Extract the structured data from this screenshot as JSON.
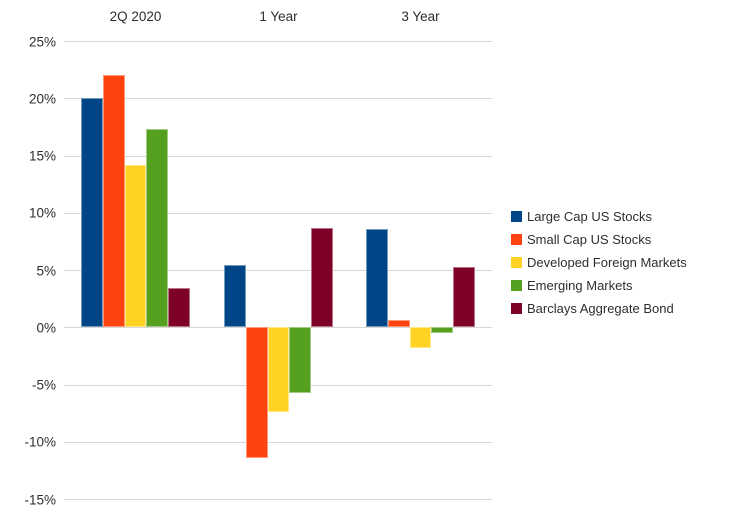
{
  "chart_data": {
    "type": "bar",
    "title": "",
    "categories": [
      "2Q 2020",
      "1 Year",
      "3 Year"
    ],
    "series": [
      {
        "name": "Large Cap US Stocks",
        "color": "#004687",
        "values": [
          20.0,
          5.4,
          8.6
        ]
      },
      {
        "name": "Small Cap US Stocks",
        "color": "#FE430E",
        "values": [
          22.0,
          -11.4,
          0.6
        ]
      },
      {
        "name": "Developed Foreign Markets",
        "color": "#FFD224",
        "values": [
          14.2,
          -7.4,
          -1.8
        ]
      },
      {
        "name": "Emerging Markets",
        "color": "#56A01F",
        "values": [
          17.3,
          -5.7,
          -0.5
        ]
      },
      {
        "name": "Barclays Aggregate Bond",
        "color": "#7E0127",
        "values": [
          3.4,
          8.7,
          5.3
        ]
      }
    ],
    "y_ticks": [
      {
        "label": "25%",
        "value": 25
      },
      {
        "label": "20%",
        "value": 20
      },
      {
        "label": "15%",
        "value": 15
      },
      {
        "label": "10%",
        "value": 10
      },
      {
        "label": "5%",
        "value": 5
      },
      {
        "label": "0%",
        "value": 0
      },
      {
        "label": "-5%",
        "value": -5
      },
      {
        "label": "-10%",
        "value": -10
      },
      {
        "label": "-15%",
        "value": -15
      }
    ],
    "ylim": [
      -15,
      25
    ],
    "xlabel": "",
    "ylabel": "",
    "grid": true,
    "legend_position": "right",
    "colors": {
      "gridline": "#D8D8D8",
      "text": "#2E2E2E",
      "background": "#FFFFFF"
    }
  }
}
